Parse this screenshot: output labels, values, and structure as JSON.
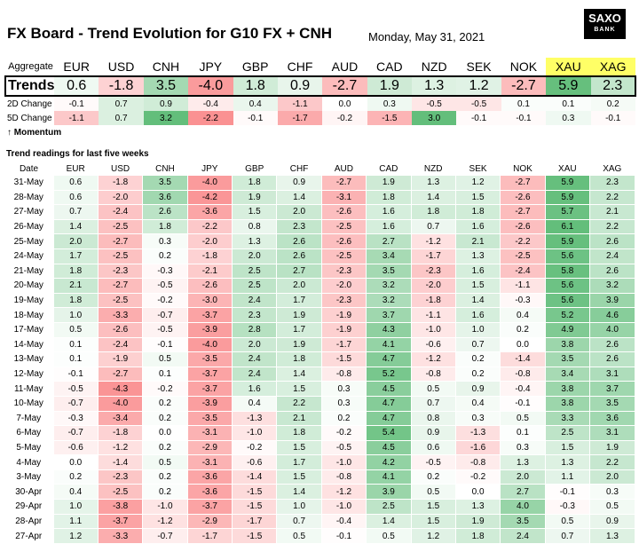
{
  "title": "FX Board - Trend Evolution for G10 FX + CNH",
  "date": "Monday, May 31, 2021",
  "logo": {
    "line1": "SAXO",
    "line2": "BANK"
  },
  "currencies": [
    "EUR",
    "USD",
    "CNH",
    "JPY",
    "GBP",
    "CHF",
    "AUD",
    "CAD",
    "NZD",
    "SEK",
    "NOK",
    "XAU",
    "XAG"
  ],
  "labels": {
    "aggregate": "Aggregate",
    "trends": "Trends ->",
    "change2d": "2D Change",
    "change5d": "5D Change",
    "momentum": "↑ Momentum",
    "weeks_title": "Trend readings for last five weeks",
    "date_col": "Date"
  },
  "trends": [
    "0.6",
    "-1.8",
    "3.5",
    "-4.0",
    "1.8",
    "0.9",
    "-2.7",
    "1.9",
    "1.3",
    "1.2",
    "-2.7",
    "5.9",
    "2.3"
  ],
  "change2d": [
    "-0.1",
    "0.7",
    "0.9",
    "-0.4",
    "0.4",
    "-1.1",
    "0.0",
    "0.3",
    "-0.5",
    "-0.5",
    "0.1",
    "0.1",
    "0.2"
  ],
  "change5d": [
    "-1.1",
    "0.7",
    "3.2",
    "-2.2",
    "-0.1",
    "-1.7",
    "-0.2",
    "-1.5",
    "3.0",
    "-0.1",
    "-0.1",
    "0.3",
    "-0.1"
  ],
  "weeks": [
    {
      "date": "31-May",
      "values": [
        "0.6",
        "-1.8",
        "3.5",
        "-4.0",
        "1.8",
        "0.9",
        "-2.7",
        "1.9",
        "1.3",
        "1.2",
        "-2.7",
        "5.9",
        "2.3"
      ]
    },
    {
      "date": "28-May",
      "values": [
        "0.6",
        "-2.0",
        "3.6",
        "-4.2",
        "1.9",
        "1.4",
        "-3.1",
        "1.8",
        "1.4",
        "1.5",
        "-2.6",
        "5.9",
        "2.2"
      ]
    },
    {
      "date": "27-May",
      "values": [
        "0.7",
        "-2.4",
        "2.6",
        "-3.6",
        "1.5",
        "2.0",
        "-2.6",
        "1.6",
        "1.8",
        "1.8",
        "-2.7",
        "5.7",
        "2.1"
      ]
    },
    {
      "date": "26-May",
      "values": [
        "1.4",
        "-2.5",
        "1.8",
        "-2.2",
        "0.8",
        "2.3",
        "-2.5",
        "1.6",
        "0.7",
        "1.6",
        "-2.6",
        "6.1",
        "2.2"
      ]
    },
    {
      "date": "25-May",
      "values": [
        "2.0",
        "-2.7",
        "0.3",
        "-2.0",
        "1.3",
        "2.6",
        "-2.6",
        "2.7",
        "-1.2",
        "2.1",
        "-2.2",
        "5.9",
        "2.6"
      ]
    },
    {
      "date": "24-May",
      "values": [
        "1.7",
        "-2.5",
        "0.2",
        "-1.8",
        "2.0",
        "2.6",
        "-2.5",
        "3.4",
        "-1.7",
        "1.3",
        "-2.5",
        "5.6",
        "2.4"
      ]
    },
    {
      "date": "21-May",
      "values": [
        "1.8",
        "-2.3",
        "-0.3",
        "-2.1",
        "2.5",
        "2.7",
        "-2.3",
        "3.5",
        "-2.3",
        "1.6",
        "-2.4",
        "5.8",
        "2.6"
      ]
    },
    {
      "date": "20-May",
      "values": [
        "2.1",
        "-2.7",
        "-0.5",
        "-2.6",
        "2.5",
        "2.0",
        "-2.0",
        "3.2",
        "-2.0",
        "1.5",
        "-1.1",
        "5.6",
        "3.2"
      ]
    },
    {
      "date": "19-May",
      "values": [
        "1.8",
        "-2.5",
        "-0.2",
        "-3.0",
        "2.4",
        "1.7",
        "-2.3",
        "3.2",
        "-1.8",
        "1.4",
        "-0.3",
        "5.6",
        "3.9"
      ]
    },
    {
      "date": "18-May",
      "values": [
        "1.0",
        "-3.3",
        "-0.7",
        "-3.7",
        "2.3",
        "1.9",
        "-1.9",
        "3.7",
        "-1.1",
        "1.6",
        "0.4",
        "5.2",
        "4.6"
      ]
    },
    {
      "date": "17-May",
      "values": [
        "0.5",
        "-2.6",
        "-0.5",
        "-3.9",
        "2.8",
        "1.7",
        "-1.9",
        "4.3",
        "-1.0",
        "1.0",
        "0.2",
        "4.9",
        "4.0"
      ]
    },
    {
      "date": "14-May",
      "values": [
        "0.1",
        "-2.4",
        "-0.1",
        "-4.0",
        "2.0",
        "1.9",
        "-1.7",
        "4.1",
        "-0.6",
        "0.7",
        "0.0",
        "3.8",
        "2.6"
      ]
    },
    {
      "date": "13-May",
      "values": [
        "0.1",
        "-1.9",
        "0.5",
        "-3.5",
        "2.4",
        "1.8",
        "-1.5",
        "4.7",
        "-1.2",
        "0.2",
        "-1.4",
        "3.5",
        "2.6"
      ]
    },
    {
      "date": "12-May",
      "values": [
        "-0.1",
        "-2.7",
        "0.1",
        "-3.7",
        "2.4",
        "1.4",
        "-0.8",
        "5.2",
        "-0.8",
        "0.2",
        "-0.8",
        "3.4",
        "3.1"
      ]
    },
    {
      "date": "11-May",
      "values": [
        "-0.5",
        "-4.3",
        "-0.2",
        "-3.7",
        "1.6",
        "1.5",
        "0.3",
        "4.5",
        "0.5",
        "0.9",
        "-0.4",
        "3.8",
        "3.7"
      ]
    },
    {
      "date": "10-May",
      "values": [
        "-0.7",
        "-4.0",
        "0.2",
        "-3.9",
        "0.4",
        "2.2",
        "0.3",
        "4.7",
        "0.7",
        "0.4",
        "-0.1",
        "3.8",
        "3.5"
      ]
    },
    {
      "date": "7-May",
      "values": [
        "-0.3",
        "-3.4",
        "0.2",
        "-3.5",
        "-1.3",
        "2.1",
        "0.2",
        "4.7",
        "0.8",
        "0.3",
        "0.5",
        "3.3",
        "3.6"
      ]
    },
    {
      "date": "6-May",
      "values": [
        "-0.7",
        "-1.8",
        "0.0",
        "-3.1",
        "-1.0",
        "1.8",
        "-0.2",
        "5.4",
        "0.9",
        "-1.3",
        "0.1",
        "2.5",
        "3.1"
      ]
    },
    {
      "date": "5-May",
      "values": [
        "-0.6",
        "-1.2",
        "0.2",
        "-2.9",
        "-0.2",
        "1.5",
        "-0.5",
        "4.5",
        "0.6",
        "-1.6",
        "0.3",
        "1.5",
        "1.9"
      ]
    },
    {
      "date": "4-May",
      "values": [
        "0.0",
        "-1.4",
        "0.5",
        "-3.1",
        "-0.6",
        "1.7",
        "-1.0",
        "4.2",
        "-0.5",
        "-0.8",
        "1.3",
        "1.3",
        "2.2"
      ]
    },
    {
      "date": "3-May",
      "values": [
        "0.2",
        "-2.3",
        "0.2",
        "-3.6",
        "-1.4",
        "1.5",
        "-0.8",
        "4.1",
        "0.2",
        "-0.2",
        "2.0",
        "1.1",
        "2.0"
      ]
    },
    {
      "date": "30-Apr",
      "values": [
        "0.4",
        "-2.5",
        "0.2",
        "-3.6",
        "-1.5",
        "1.4",
        "-1.2",
        "3.9",
        "0.5",
        "0.0",
        "2.7",
        "-0.1",
        "0.3"
      ]
    },
    {
      "date": "29-Apr",
      "values": [
        "1.0",
        "-3.8",
        "-1.0",
        "-3.7",
        "-1.5",
        "1.0",
        "-1.0",
        "2.5",
        "1.5",
        "1.3",
        "4.0",
        "-0.3",
        "0.5"
      ]
    },
    {
      "date": "28-Apr",
      "values": [
        "1.1",
        "-3.7",
        "-1.2",
        "-2.9",
        "-1.7",
        "0.7",
        "-0.4",
        "1.4",
        "1.5",
        "1.9",
        "3.5",
        "0.5",
        "0.9"
      ]
    },
    {
      "date": "27-Apr",
      "values": [
        "1.2",
        "-3.3",
        "-0.7",
        "-1.7",
        "-1.5",
        "0.5",
        "-0.1",
        "0.5",
        "1.2",
        "1.8",
        "2.4",
        "0.7",
        "1.3"
      ]
    }
  ]
}
